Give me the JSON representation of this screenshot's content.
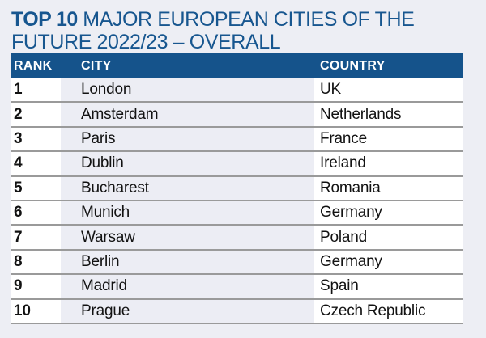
{
  "colors": {
    "accent_blue": "#15538B",
    "title_blue": "#17568F",
    "page_background": "#EDEEF4",
    "row_white": "#FFFFFF",
    "city_column_tint": "#ECEDF4",
    "divider_gray": "#9A9A9A",
    "header_text": "#FFFFFF",
    "body_text": "#121212"
  },
  "title": {
    "prefix": "TOP 10",
    "line1": "MAJOR EUROPEAN CITIES OF THE",
    "line2": "FUTURE 2022/23 – OVERALL"
  },
  "chart_data": {
    "type": "table",
    "title": "TOP 10 MAJOR EUROPEAN CITIES OF THE FUTURE 2022/23 – OVERALL",
    "columns": [
      "RANK",
      "CITY",
      "COUNTRY"
    ],
    "rows": [
      [
        "1",
        "London",
        "UK"
      ],
      [
        "2",
        "Amsterdam",
        "Netherlands"
      ],
      [
        "3",
        "Paris",
        "France"
      ],
      [
        "4",
        "Dublin",
        "Ireland"
      ],
      [
        "5",
        "Bucharest",
        "Romania"
      ],
      [
        "6",
        "Munich",
        "Germany"
      ],
      [
        "7",
        "Warsaw",
        "Poland"
      ],
      [
        "8",
        "Berlin",
        "Germany"
      ],
      [
        "9",
        "Madrid",
        "Spain"
      ],
      [
        "10",
        "Prague",
        "Czech Republic"
      ]
    ],
    "layout": {
      "legend": "none",
      "grid": "horizontal row dividers",
      "header_background": "#15538B"
    }
  }
}
